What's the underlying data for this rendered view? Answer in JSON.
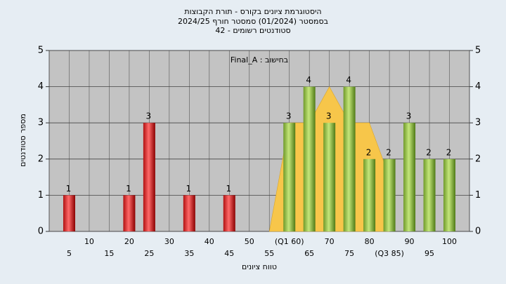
{
  "chart_data": {
    "type": "bar",
    "title": [
      "היסטוגרמת ציונים בקורס - תורת הקבוצות",
      "בסמסטר  (01/2024)  סמסטר חורף 2024/25",
      "42 - סטודנטים רשומים"
    ],
    "annotation": "Final_A : בחישוב",
    "x_label": "טווח ציונים",
    "y_label": "מספר סטודנטים",
    "categories": [
      "5",
      "10",
      "15",
      "20",
      "25",
      "30",
      "35",
      "40",
      "45",
      "50",
      "55",
      "(Q1 60)",
      "65",
      "70",
      "75",
      "80",
      "(Q3 85)",
      "90",
      "95",
      "100"
    ],
    "values": [
      1,
      0,
      0,
      1,
      3,
      0,
      1,
      0,
      1,
      0,
      0,
      3,
      4,
      3,
      4,
      2,
      2,
      3,
      2,
      2
    ],
    "bar_colors": [
      "red",
      "red",
      "red",
      "red",
      "red",
      "red",
      "red",
      "red",
      "red",
      "red",
      "red",
      "green",
      "green",
      "green",
      "green",
      "green",
      "green",
      "green",
      "green",
      "green"
    ],
    "area": {
      "color": "#f7c64a",
      "values": [
        null,
        null,
        null,
        null,
        null,
        null,
        null,
        null,
        null,
        null,
        0,
        3,
        3,
        4,
        3,
        3,
        1.5,
        null,
        null,
        null
      ]
    },
    "ylim": [
      0,
      5
    ],
    "yticks": [
      0,
      1,
      2,
      3,
      4,
      5
    ],
    "y2lim": [
      0,
      5
    ],
    "y2ticks": [
      0,
      1,
      2,
      3,
      4,
      5
    ],
    "grid": true
  }
}
